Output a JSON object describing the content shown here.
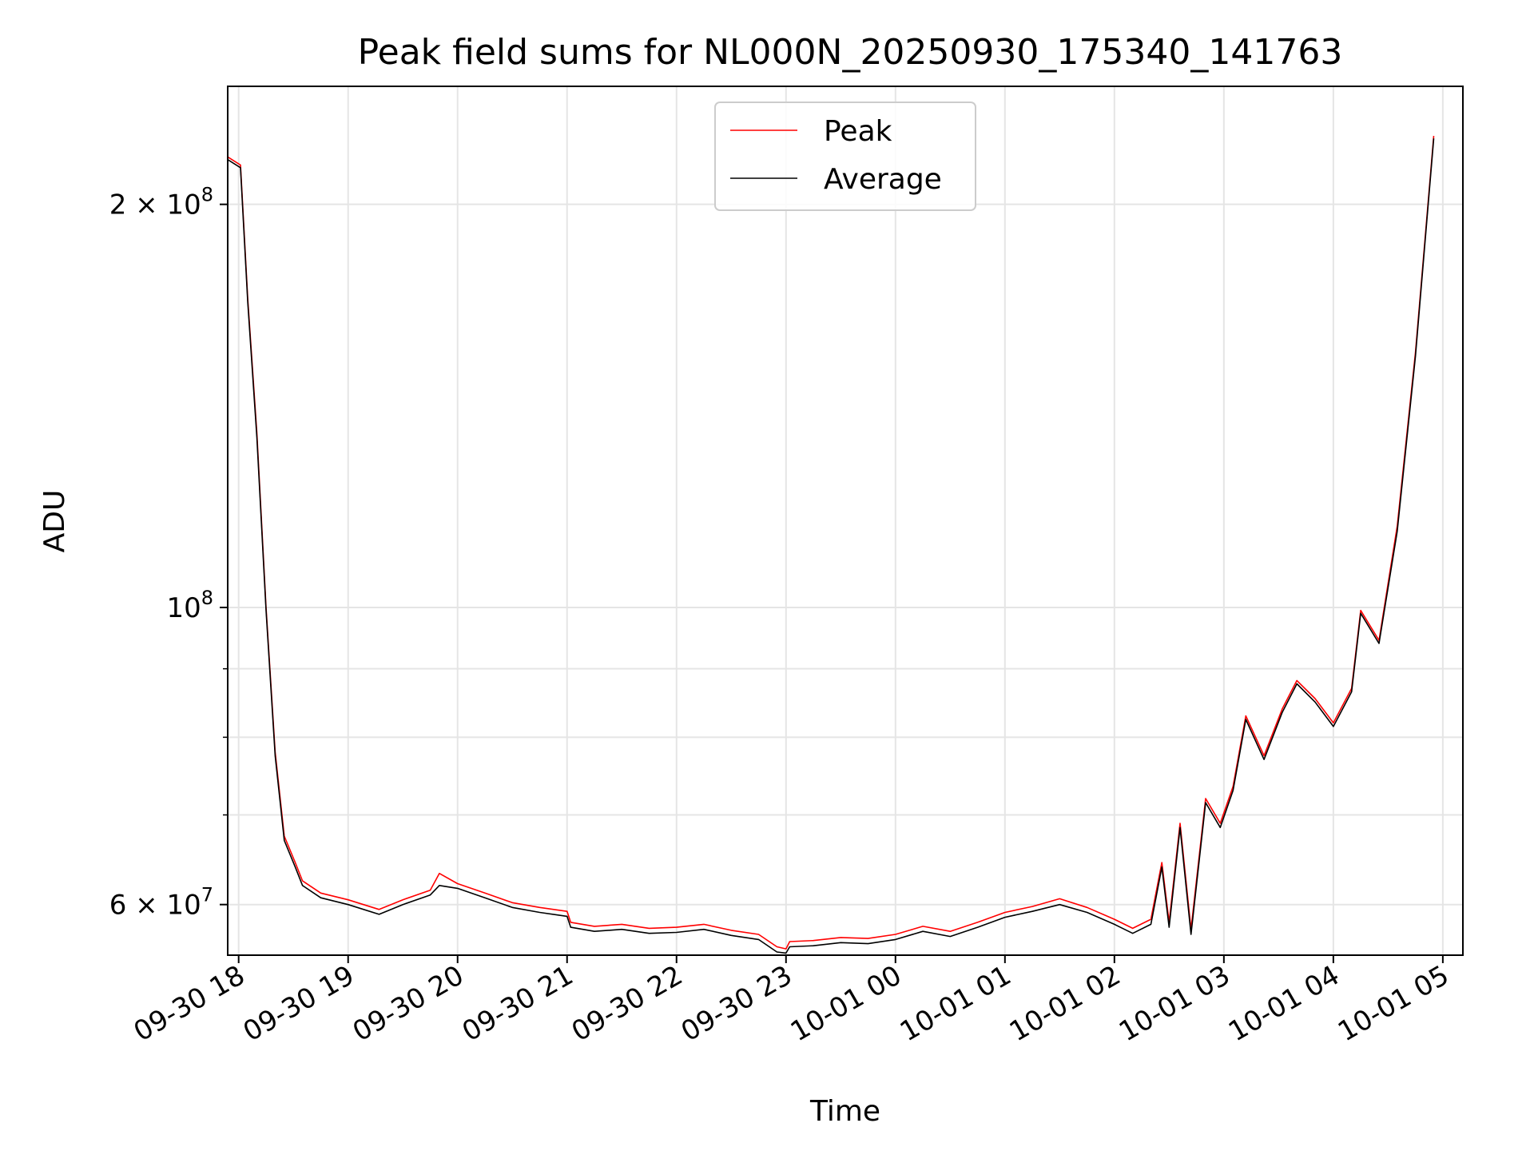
{
  "chart_data": {
    "type": "line",
    "title": "Peak field sums for NL000N_20250930_175340_141763",
    "xlabel": "Time",
    "ylabel": "ADU",
    "yscale": "log",
    "xlim": [
      "2025-09-30 17:54",
      "2025-10-01 05:11"
    ],
    "ylim": [
      55000000,
      245000000
    ],
    "x_ticks": [
      {
        "t": "2025-09-30 18:00",
        "label": "09-30 18"
      },
      {
        "t": "2025-09-30 19:00",
        "label": "09-30 19"
      },
      {
        "t": "2025-09-30 20:00",
        "label": "09-30 20"
      },
      {
        "t": "2025-09-30 21:00",
        "label": "09-30 21"
      },
      {
        "t": "2025-09-30 22:00",
        "label": "09-30 22"
      },
      {
        "t": "2025-09-30 23:00",
        "label": "09-30 23"
      },
      {
        "t": "2025-10-01 00:00",
        "label": "10-01 00"
      },
      {
        "t": "2025-10-01 01:00",
        "label": "10-01 01"
      },
      {
        "t": "2025-10-01 02:00",
        "label": "10-01 02"
      },
      {
        "t": "2025-10-01 03:00",
        "label": "10-01 03"
      },
      {
        "t": "2025-10-01 04:00",
        "label": "10-01 04"
      },
      {
        "t": "2025-10-01 05:00",
        "label": "10-01 05"
      }
    ],
    "y_ticks": [
      {
        "value": 60000000,
        "base": "6",
        "exp": "7"
      },
      {
        "value": 100000000,
        "base": "",
        "exp": "8"
      },
      {
        "value": 200000000,
        "base": "2",
        "exp": "8"
      }
    ],
    "y_minor_ticks": [
      70000000,
      80000000,
      90000000
    ],
    "grid": true,
    "legend_position": "top-center",
    "series": [
      {
        "name": "Peak",
        "color": "#ff0000",
        "points": [
          [
            "2025-09-30 17:54",
            217000000.0
          ],
          [
            "2025-09-30 18:01",
            214000000.0
          ],
          [
            "2025-09-30 18:05",
            170000000.0
          ],
          [
            "2025-09-30 18:10",
            135000000.0
          ],
          [
            "2025-09-30 18:15",
            100000000.0
          ],
          [
            "2025-09-30 18:20",
            78000000.0
          ],
          [
            "2025-09-30 18:25",
            67500000.0
          ],
          [
            "2025-09-30 18:31",
            64500000.0
          ],
          [
            "2025-09-30 18:35",
            62500000.0
          ],
          [
            "2025-09-30 18:45",
            61200000.0
          ],
          [
            "2025-09-30 19:00",
            60500000.0
          ],
          [
            "2025-09-30 19:17",
            59500000.0
          ],
          [
            "2025-09-30 19:30",
            60500000.0
          ],
          [
            "2025-09-30 19:45",
            61500000.0
          ],
          [
            "2025-09-30 19:50",
            63300000.0
          ],
          [
            "2025-09-30 20:00",
            62200000.0
          ],
          [
            "2025-09-30 20:15",
            61200000.0
          ],
          [
            "2025-09-30 20:30",
            60200000.0
          ],
          [
            "2025-09-30 20:45",
            59700000.0
          ],
          [
            "2025-09-30 21:00",
            59300000.0
          ],
          [
            "2025-09-30 21:02",
            58200000.0
          ],
          [
            "2025-09-30 21:15",
            57800000.0
          ],
          [
            "2025-09-30 21:30",
            58000000.0
          ],
          [
            "2025-09-30 21:45",
            57600000.0
          ],
          [
            "2025-09-30 22:00",
            57700000.0
          ],
          [
            "2025-09-30 22:15",
            58000000.0
          ],
          [
            "2025-09-30 22:30",
            57400000.0
          ],
          [
            "2025-09-30 22:45",
            57000000.0
          ],
          [
            "2025-09-30 22:55",
            55800000.0
          ],
          [
            "2025-09-30 23:00",
            55600000.0
          ],
          [
            "2025-09-30 23:02",
            56300000.0
          ],
          [
            "2025-09-30 23:15",
            56400000.0
          ],
          [
            "2025-09-30 23:30",
            56700000.0
          ],
          [
            "2025-09-30 23:45",
            56600000.0
          ],
          [
            "2025-10-01 00:00",
            57000000.0
          ],
          [
            "2025-10-01 00:15",
            57800000.0
          ],
          [
            "2025-10-01 00:30",
            57300000.0
          ],
          [
            "2025-10-01 00:45",
            58200000.0
          ],
          [
            "2025-10-01 01:00",
            59200000.0
          ],
          [
            "2025-10-01 01:15",
            59800000.0
          ],
          [
            "2025-10-01 01:30",
            60600000.0
          ],
          [
            "2025-10-01 01:45",
            59700000.0
          ],
          [
            "2025-10-01 02:00",
            58500000.0
          ],
          [
            "2025-10-01 02:10",
            57600000.0
          ],
          [
            "2025-10-01 02:20",
            58500000.0
          ],
          [
            "2025-10-01 02:26",
            64500000.0
          ],
          [
            "2025-10-01 02:30",
            58200000.0
          ],
          [
            "2025-10-01 02:36",
            69000000.0
          ],
          [
            "2025-10-01 02:42",
            57500000.0
          ],
          [
            "2025-10-01 02:50",
            72000000.0
          ],
          [
            "2025-10-01 02:58",
            69000000.0
          ],
          [
            "2025-10-01 03:05",
            73500000.0
          ],
          [
            "2025-10-01 03:12",
            83000000.0
          ],
          [
            "2025-10-01 03:22",
            77500000.0
          ],
          [
            "2025-10-01 03:32",
            84000000.0
          ],
          [
            "2025-10-01 03:40",
            88200000.0
          ],
          [
            "2025-10-01 03:50",
            85500000.0
          ],
          [
            "2025-10-01 04:00",
            82000000.0
          ],
          [
            "2025-10-01 04:10",
            87000000.0
          ],
          [
            "2025-10-01 04:15",
            99500000.0
          ],
          [
            "2025-10-01 04:25",
            94500000.0
          ],
          [
            "2025-10-01 04:35",
            115000000.0
          ],
          [
            "2025-10-01 04:45",
            155000000.0
          ],
          [
            "2025-10-01 04:55",
            225000000.0
          ]
        ]
      },
      {
        "name": "Average",
        "color": "#000000",
        "points": [
          [
            "2025-09-30 17:54",
            216000000.0
          ],
          [
            "2025-09-30 18:01",
            213000000.0
          ],
          [
            "2025-09-30 18:05",
            169000000.0
          ],
          [
            "2025-09-30 18:10",
            134000000.0
          ],
          [
            "2025-09-30 18:15",
            99500000.0
          ],
          [
            "2025-09-30 18:20",
            77500000.0
          ],
          [
            "2025-09-30 18:25",
            67000000.0
          ],
          [
            "2025-09-30 18:31",
            64000000.0
          ],
          [
            "2025-09-30 18:35",
            62000000.0
          ],
          [
            "2025-09-30 18:45",
            60700000.0
          ],
          [
            "2025-09-30 19:00",
            60000000.0
          ],
          [
            "2025-09-30 19:17",
            59000000.0
          ],
          [
            "2025-09-30 19:30",
            60000000.0
          ],
          [
            "2025-09-30 19:45",
            61000000.0
          ],
          [
            "2025-09-30 19:50",
            62000000.0
          ],
          [
            "2025-09-30 20:00",
            61700000.0
          ],
          [
            "2025-09-30 20:15",
            60700000.0
          ],
          [
            "2025-09-30 20:30",
            59700000.0
          ],
          [
            "2025-09-30 20:45",
            59200000.0
          ],
          [
            "2025-09-30 21:00",
            58800000.0
          ],
          [
            "2025-09-30 21:02",
            57700000.0
          ],
          [
            "2025-09-30 21:15",
            57300000.0
          ],
          [
            "2025-09-30 21:30",
            57500000.0
          ],
          [
            "2025-09-30 21:45",
            57100000.0
          ],
          [
            "2025-09-30 22:00",
            57200000.0
          ],
          [
            "2025-09-30 22:15",
            57500000.0
          ],
          [
            "2025-09-30 22:30",
            56900000.0
          ],
          [
            "2025-09-30 22:45",
            56500000.0
          ],
          [
            "2025-09-30 22:55",
            55300000.0
          ],
          [
            "2025-09-30 23:00",
            55200000.0
          ],
          [
            "2025-09-30 23:02",
            55800000.0
          ],
          [
            "2025-09-30 23:15",
            55900000.0
          ],
          [
            "2025-09-30 23:30",
            56200000.0
          ],
          [
            "2025-09-30 23:45",
            56100000.0
          ],
          [
            "2025-10-01 00:00",
            56500000.0
          ],
          [
            "2025-10-01 00:15",
            57300000.0
          ],
          [
            "2025-10-01 00:30",
            56800000.0
          ],
          [
            "2025-10-01 00:45",
            57700000.0
          ],
          [
            "2025-10-01 01:00",
            58700000.0
          ],
          [
            "2025-10-01 01:15",
            59300000.0
          ],
          [
            "2025-10-01 01:30",
            60000000.0
          ],
          [
            "2025-10-01 01:45",
            59200000.0
          ],
          [
            "2025-10-01 02:00",
            58000000.0
          ],
          [
            "2025-10-01 02:10",
            57100000.0
          ],
          [
            "2025-10-01 02:20",
            58000000.0
          ],
          [
            "2025-10-01 02:26",
            64000000.0
          ],
          [
            "2025-10-01 02:30",
            57700000.0
          ],
          [
            "2025-10-01 02:36",
            68500000.0
          ],
          [
            "2025-10-01 02:42",
            57000000.0
          ],
          [
            "2025-10-01 02:50",
            71500000.0
          ],
          [
            "2025-10-01 02:58",
            68500000.0
          ],
          [
            "2025-10-01 03:05",
            73000000.0
          ],
          [
            "2025-10-01 03:12",
            82500000.0
          ],
          [
            "2025-10-01 03:22",
            77000000.0
          ],
          [
            "2025-10-01 03:32",
            83500000.0
          ],
          [
            "2025-10-01 03:40",
            87700000.0
          ],
          [
            "2025-10-01 03:50",
            85000000.0
          ],
          [
            "2025-10-01 04:00",
            81500000.0
          ],
          [
            "2025-10-01 04:10",
            86500000.0
          ],
          [
            "2025-10-01 04:15",
            99000000.0
          ],
          [
            "2025-10-01 04:25",
            94000000.0
          ],
          [
            "2025-10-01 04:35",
            114000000.0
          ],
          [
            "2025-10-01 04:45",
            154000000.0
          ],
          [
            "2025-10-01 04:55",
            224000000.0
          ]
        ]
      }
    ]
  }
}
